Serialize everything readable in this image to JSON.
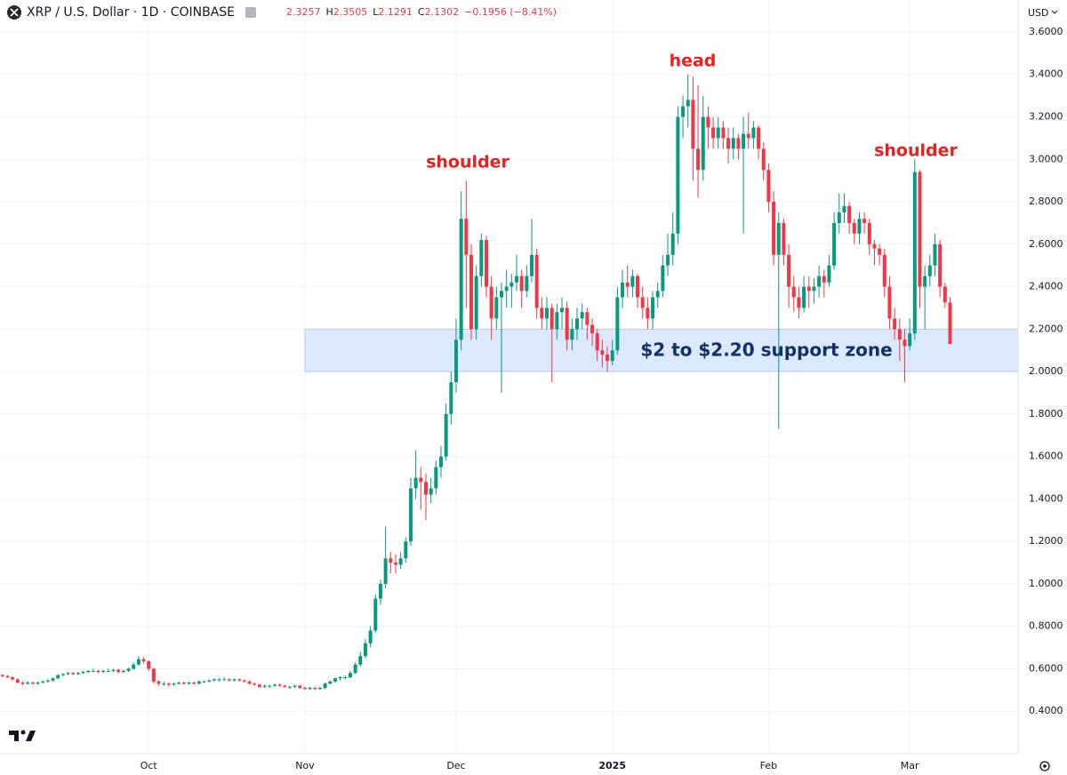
{
  "chart_data": {
    "type": "candlestick",
    "symbol": "XRP / U.S. Dollar · 1D · COINBASE",
    "ohlc_labels": [
      "H",
      "L",
      "C"
    ],
    "change": "−0.1956 (−8.41%)",
    "currency": "USD",
    "up_color": "#089981",
    "down_color": "#f23645",
    "grid": true,
    "xlim": [
      -0.5,
      201.5
    ],
    "xticks": [
      {
        "value": 29,
        "label": "Oct"
      },
      {
        "value": 60,
        "label": "Nov"
      },
      {
        "value": 90,
        "label": "Dec"
      },
      {
        "value": 121,
        "label": "2025"
      },
      {
        "value": 152,
        "label": "Feb"
      },
      {
        "value": 180,
        "label": "Mar"
      }
    ],
    "ylim": [
      0.2,
      3.625
    ],
    "yticks": [
      {
        "value": 0.4,
        "label": "0.4000"
      },
      {
        "value": 0.6,
        "label": "0.6000"
      },
      {
        "value": 0.8,
        "label": "0.8000"
      },
      {
        "value": 1.0,
        "label": "1.0000"
      },
      {
        "value": 1.2,
        "label": "1.2000"
      },
      {
        "value": 1.4,
        "label": "1.4000"
      },
      {
        "value": 1.6,
        "label": "1.6000"
      },
      {
        "value": 1.8,
        "label": "1.8000"
      },
      {
        "value": 2.0,
        "label": "2.0000"
      },
      {
        "value": 2.2,
        "label": "2.2000"
      },
      {
        "value": 2.4,
        "label": "2.4000"
      },
      {
        "value": 2.6,
        "label": "2.6000"
      },
      {
        "value": 2.8,
        "label": "2.8000"
      },
      {
        "value": 3.0,
        "label": "3.0000"
      },
      {
        "value": 3.2,
        "label": "3.2000"
      },
      {
        "value": 3.4,
        "label": "3.4000"
      },
      {
        "value": 3.6,
        "label": "3.6000"
      }
    ],
    "support_zone": {
      "label": "$2 to $2.20 support zone",
      "range": [
        2.0,
        2.2
      ],
      "color": "#d6e4fb"
    },
    "annotations": [
      "shoulder",
      "head",
      "shoulder"
    ],
    "ohlc": [
      [
        0.57,
        0.575,
        0.56,
        0.565
      ],
      [
        0.565,
        0.57,
        0.555,
        0.56
      ],
      [
        0.56,
        0.565,
        0.545,
        0.55
      ],
      [
        0.55,
        0.555,
        0.53,
        0.535
      ],
      [
        0.535,
        0.54,
        0.52,
        0.53
      ],
      [
        0.53,
        0.54,
        0.525,
        0.535
      ],
      [
        0.535,
        0.54,
        0.525,
        0.53
      ],
      [
        0.53,
        0.54,
        0.525,
        0.535
      ],
      [
        0.535,
        0.545,
        0.53,
        0.54
      ],
      [
        0.54,
        0.55,
        0.535,
        0.545
      ],
      [
        0.545,
        0.56,
        0.54,
        0.555
      ],
      [
        0.555,
        0.575,
        0.55,
        0.57
      ],
      [
        0.57,
        0.58,
        0.565,
        0.575
      ],
      [
        0.575,
        0.585,
        0.57,
        0.58
      ],
      [
        0.58,
        0.585,
        0.57,
        0.575
      ],
      [
        0.575,
        0.585,
        0.57,
        0.58
      ],
      [
        0.58,
        0.59,
        0.575,
        0.585
      ],
      [
        0.585,
        0.595,
        0.58,
        0.59
      ],
      [
        0.59,
        0.6,
        0.585,
        0.59
      ],
      [
        0.59,
        0.595,
        0.58,
        0.585
      ],
      [
        0.585,
        0.595,
        0.58,
        0.59
      ],
      [
        0.59,
        0.6,
        0.585,
        0.59
      ],
      [
        0.59,
        0.6,
        0.585,
        0.595
      ],
      [
        0.595,
        0.6,
        0.58,
        0.585
      ],
      [
        0.585,
        0.595,
        0.58,
        0.59
      ],
      [
        0.59,
        0.605,
        0.585,
        0.6
      ],
      [
        0.6,
        0.63,
        0.595,
        0.62
      ],
      [
        0.62,
        0.66,
        0.615,
        0.645
      ],
      [
        0.645,
        0.655,
        0.625,
        0.635
      ],
      [
        0.635,
        0.64,
        0.59,
        0.6
      ],
      [
        0.6,
        0.605,
        0.53,
        0.54
      ],
      [
        0.54,
        0.545,
        0.52,
        0.53
      ],
      [
        0.53,
        0.54,
        0.52,
        0.53
      ],
      [
        0.53,
        0.535,
        0.515,
        0.525
      ],
      [
        0.525,
        0.535,
        0.52,
        0.53
      ],
      [
        0.53,
        0.54,
        0.525,
        0.535
      ],
      [
        0.535,
        0.54,
        0.525,
        0.53
      ],
      [
        0.53,
        0.54,
        0.525,
        0.535
      ],
      [
        0.535,
        0.54,
        0.525,
        0.53
      ],
      [
        0.53,
        0.545,
        0.525,
        0.54
      ],
      [
        0.54,
        0.545,
        0.535,
        0.54
      ],
      [
        0.54,
        0.55,
        0.535,
        0.545
      ],
      [
        0.545,
        0.555,
        0.54,
        0.55
      ],
      [
        0.55,
        0.555,
        0.54,
        0.55
      ],
      [
        0.55,
        0.56,
        0.545,
        0.55
      ],
      [
        0.55,
        0.555,
        0.54,
        0.545
      ],
      [
        0.545,
        0.555,
        0.54,
        0.55
      ],
      [
        0.55,
        0.555,
        0.54,
        0.545
      ],
      [
        0.545,
        0.55,
        0.535,
        0.54
      ],
      [
        0.54,
        0.545,
        0.525,
        0.53
      ],
      [
        0.53,
        0.535,
        0.52,
        0.525
      ],
      [
        0.525,
        0.53,
        0.51,
        0.515
      ],
      [
        0.515,
        0.525,
        0.51,
        0.52
      ],
      [
        0.52,
        0.525,
        0.51,
        0.52
      ],
      [
        0.52,
        0.53,
        0.515,
        0.525
      ],
      [
        0.525,
        0.53,
        0.515,
        0.52
      ],
      [
        0.52,
        0.525,
        0.51,
        0.515
      ],
      [
        0.515,
        0.52,
        0.505,
        0.515
      ],
      [
        0.515,
        0.525,
        0.51,
        0.52
      ],
      [
        0.52,
        0.525,
        0.505,
        0.51
      ],
      [
        0.51,
        0.515,
        0.5,
        0.505
      ],
      [
        0.505,
        0.515,
        0.5,
        0.51
      ],
      [
        0.51,
        0.515,
        0.5,
        0.505
      ],
      [
        0.505,
        0.515,
        0.5,
        0.51
      ],
      [
        0.51,
        0.535,
        0.505,
        0.53
      ],
      [
        0.53,
        0.545,
        0.525,
        0.54
      ],
      [
        0.54,
        0.56,
        0.535,
        0.555
      ],
      [
        0.555,
        0.565,
        0.545,
        0.56
      ],
      [
        0.56,
        0.57,
        0.55,
        0.56
      ],
      [
        0.56,
        0.59,
        0.555,
        0.58
      ],
      [
        0.58,
        0.63,
        0.575,
        0.62
      ],
      [
        0.62,
        0.68,
        0.61,
        0.66
      ],
      [
        0.66,
        0.74,
        0.65,
        0.72
      ],
      [
        0.72,
        0.8,
        0.7,
        0.78
      ],
      [
        0.78,
        0.95,
        0.77,
        0.93
      ],
      [
        0.93,
        1.02,
        0.9,
        1.0
      ],
      [
        1.0,
        1.27,
        0.98,
        1.12
      ],
      [
        1.12,
        1.15,
        1.05,
        1.1
      ],
      [
        1.1,
        1.14,
        1.05,
        1.09
      ],
      [
        1.09,
        1.15,
        1.07,
        1.12
      ],
      [
        1.12,
        1.22,
        1.1,
        1.2
      ],
      [
        1.2,
        1.5,
        1.18,
        1.45
      ],
      [
        1.45,
        1.63,
        1.4,
        1.5
      ],
      [
        1.5,
        1.55,
        1.35,
        1.48
      ],
      [
        1.48,
        1.52,
        1.3,
        1.42
      ],
      [
        1.42,
        1.5,
        1.38,
        1.45
      ],
      [
        1.45,
        1.58,
        1.42,
        1.55
      ],
      [
        1.55,
        1.65,
        1.5,
        1.6
      ],
      [
        1.6,
        1.85,
        1.58,
        1.8
      ],
      [
        1.8,
        2.0,
        1.75,
        1.95
      ],
      [
        1.95,
        2.25,
        1.9,
        2.15
      ],
      [
        2.15,
        2.85,
        2.1,
        2.72
      ],
      [
        2.72,
        2.9,
        2.3,
        2.55
      ],
      [
        2.55,
        2.6,
        2.15,
        2.2
      ],
      [
        2.2,
        2.5,
        2.15,
        2.45
      ],
      [
        2.45,
        2.65,
        2.4,
        2.62
      ],
      [
        2.62,
        2.64,
        2.35,
        2.4
      ],
      [
        2.4,
        2.45,
        2.15,
        2.25
      ],
      [
        2.25,
        2.4,
        2.2,
        2.35
      ],
      [
        2.35,
        2.42,
        1.9,
        2.38
      ],
      [
        2.38,
        2.48,
        2.3,
        2.4
      ],
      [
        2.4,
        2.46,
        2.3,
        2.42
      ],
      [
        2.42,
        2.55,
        2.38,
        2.45
      ],
      [
        2.45,
        2.48,
        2.3,
        2.38
      ],
      [
        2.38,
        2.5,
        2.35,
        2.45
      ],
      [
        2.45,
        2.72,
        2.42,
        2.55
      ],
      [
        2.55,
        2.58,
        2.25,
        2.3
      ],
      [
        2.3,
        2.35,
        2.2,
        2.25
      ],
      [
        2.25,
        2.35,
        2.2,
        2.3
      ],
      [
        2.3,
        2.32,
        1.95,
        2.2
      ],
      [
        2.2,
        2.32,
        2.15,
        2.28
      ],
      [
        2.28,
        2.35,
        2.2,
        2.3
      ],
      [
        2.3,
        2.33,
        2.1,
        2.15
      ],
      [
        2.15,
        2.25,
        2.1,
        2.2
      ],
      [
        2.2,
        2.3,
        2.15,
        2.25
      ],
      [
        2.25,
        2.32,
        2.2,
        2.28
      ],
      [
        2.28,
        2.3,
        2.15,
        2.22
      ],
      [
        2.22,
        2.25,
        2.12,
        2.18
      ],
      [
        2.18,
        2.2,
        2.05,
        2.1
      ],
      [
        2.1,
        2.15,
        2.02,
        2.08
      ],
      [
        2.08,
        2.12,
        2.0,
        2.05
      ],
      [
        2.05,
        2.15,
        2.03,
        2.1
      ],
      [
        2.1,
        2.4,
        2.08,
        2.35
      ],
      [
        2.35,
        2.48,
        2.3,
        2.42
      ],
      [
        2.42,
        2.5,
        2.35,
        2.4
      ],
      [
        2.4,
        2.48,
        2.35,
        2.45
      ],
      [
        2.45,
        2.46,
        2.3,
        2.35
      ],
      [
        2.35,
        2.4,
        2.25,
        2.3
      ],
      [
        2.3,
        2.35,
        2.2,
        2.25
      ],
      [
        2.25,
        2.38,
        2.2,
        2.35
      ],
      [
        2.35,
        2.42,
        2.3,
        2.38
      ],
      [
        2.38,
        2.55,
        2.35,
        2.5
      ],
      [
        2.5,
        2.65,
        2.45,
        2.55
      ],
      [
        2.55,
        2.75,
        2.5,
        2.65
      ],
      [
        2.65,
        3.25,
        2.6,
        3.2
      ],
      [
        3.2,
        3.3,
        3.1,
        3.25
      ],
      [
        3.25,
        3.4,
        3.15,
        3.28
      ],
      [
        3.28,
        3.39,
        2.9,
        3.05
      ],
      [
        3.05,
        3.35,
        2.82,
        2.95
      ],
      [
        2.95,
        3.3,
        2.9,
        3.2
      ],
      [
        3.2,
        3.25,
        3.05,
        3.15
      ],
      [
        3.15,
        3.2,
        3.05,
        3.1
      ],
      [
        3.1,
        3.2,
        3.05,
        3.15
      ],
      [
        3.15,
        3.18,
        3.05,
        3.1
      ],
      [
        3.1,
        3.15,
        2.98,
        3.05
      ],
      [
        3.05,
        3.15,
        3.0,
        3.1
      ],
      [
        3.1,
        3.12,
        3.0,
        3.05
      ],
      [
        3.05,
        3.2,
        2.65,
        3.12
      ],
      [
        3.12,
        3.22,
        3.05,
        3.1
      ],
      [
        3.1,
        3.18,
        3.05,
        3.15
      ],
      [
        3.15,
        3.16,
        3.0,
        3.05
      ],
      [
        3.05,
        3.08,
        2.9,
        2.95
      ],
      [
        2.95,
        2.98,
        2.75,
        2.8
      ],
      [
        2.8,
        2.85,
        2.5,
        2.55
      ],
      [
        2.55,
        2.75,
        1.73,
        2.7
      ],
      [
        2.7,
        2.72,
        2.5,
        2.55
      ],
      [
        2.55,
        2.6,
        2.3,
        2.4
      ],
      [
        2.4,
        2.45,
        2.28,
        2.35
      ],
      [
        2.35,
        2.4,
        2.25,
        2.3
      ],
      [
        2.3,
        2.45,
        2.28,
        2.4
      ],
      [
        2.4,
        2.45,
        2.3,
        2.38
      ],
      [
        2.38,
        2.44,
        2.32,
        2.4
      ],
      [
        2.4,
        2.5,
        2.35,
        2.45
      ],
      [
        2.45,
        2.48,
        2.35,
        2.42
      ],
      [
        2.42,
        2.55,
        2.4,
        2.5
      ],
      [
        2.5,
        2.75,
        2.48,
        2.7
      ],
      [
        2.7,
        2.84,
        2.65,
        2.75
      ],
      [
        2.75,
        2.84,
        2.7,
        2.78
      ],
      [
        2.78,
        2.8,
        2.65,
        2.7
      ],
      [
        2.7,
        2.72,
        2.6,
        2.65
      ],
      [
        2.65,
        2.75,
        2.6,
        2.72
      ],
      [
        2.72,
        2.75,
        2.65,
        2.7
      ],
      [
        2.7,
        2.72,
        2.55,
        2.6
      ],
      [
        2.6,
        2.62,
        2.5,
        2.58
      ],
      [
        2.58,
        2.6,
        2.5,
        2.55
      ],
      [
        2.55,
        2.58,
        2.35,
        2.4
      ],
      [
        2.4,
        2.45,
        2.2,
        2.25
      ],
      [
        2.25,
        2.3,
        2.15,
        2.2
      ],
      [
        2.2,
        2.25,
        2.05,
        2.15
      ],
      [
        2.15,
        2.2,
        1.95,
        2.12
      ],
      [
        2.12,
        2.25,
        2.1,
        2.18
      ],
      [
        2.18,
        3.0,
        2.15,
        2.94
      ],
      [
        2.94,
        2.95,
        2.3,
        2.4
      ],
      [
        2.4,
        2.5,
        2.2,
        2.45
      ],
      [
        2.45,
        2.55,
        2.4,
        2.5
      ],
      [
        2.5,
        2.65,
        2.45,
        2.6
      ],
      [
        2.6,
        2.62,
        2.35,
        2.4
      ],
      [
        2.4,
        2.42,
        2.3,
        2.3257
      ],
      [
        2.3257,
        2.3505,
        2.1291,
        2.1302
      ]
    ]
  }
}
